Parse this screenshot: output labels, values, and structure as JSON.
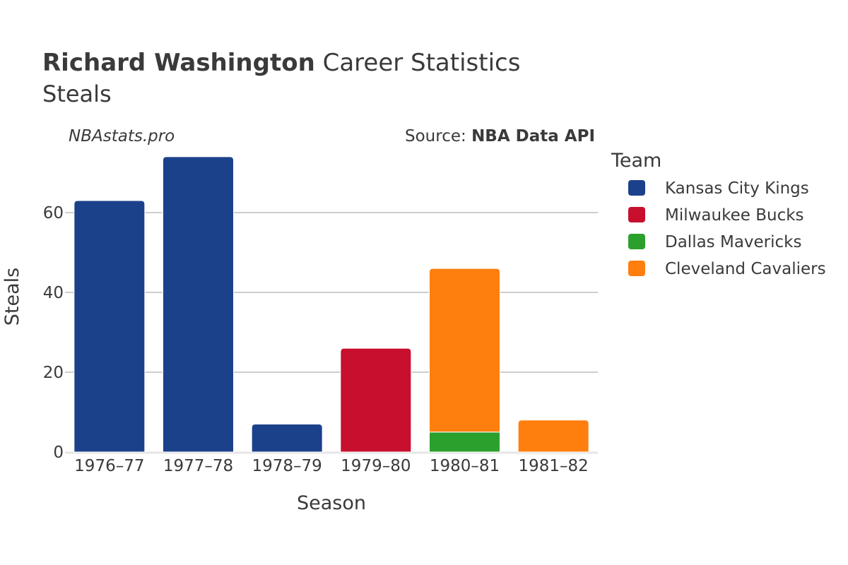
{
  "header": {
    "player_name": "Richard Washington",
    "title_rest": " Career Statistics",
    "subtitle": "Steals",
    "watermark": "NBAstats.pro",
    "source_prefix": "Source: ",
    "source_name": "NBA Data API"
  },
  "legend": {
    "title": "Team",
    "placement": "right"
  },
  "chart_data": {
    "type": "bar",
    "stacked": true,
    "title": "Richard Washington Career Statistics",
    "subtitle": "Steals",
    "xlabel": "Season",
    "ylabel": "Steals",
    "categories": [
      "1976–77",
      "1977–78",
      "1978–79",
      "1979–80",
      "1980–81",
      "1981–82"
    ],
    "ylim": [
      0,
      75
    ],
    "yticks": [
      0,
      20,
      40,
      60
    ],
    "grid": true,
    "series": [
      {
        "name": "Kansas City Kings",
        "color": "#1c418b",
        "values": [
          63,
          74,
          7,
          0,
          0,
          0
        ]
      },
      {
        "name": "Milwaukee Bucks",
        "color": "#c8102e",
        "values": [
          0,
          0,
          0,
          26,
          0,
          0
        ]
      },
      {
        "name": "Dallas Mavericks",
        "color": "#2ca02c",
        "values": [
          0,
          0,
          0,
          0,
          5,
          0
        ]
      },
      {
        "name": "Cleveland Cavaliers",
        "color": "#ff7f0e",
        "values": [
          0,
          0,
          0,
          0,
          41,
          8
        ]
      }
    ]
  }
}
